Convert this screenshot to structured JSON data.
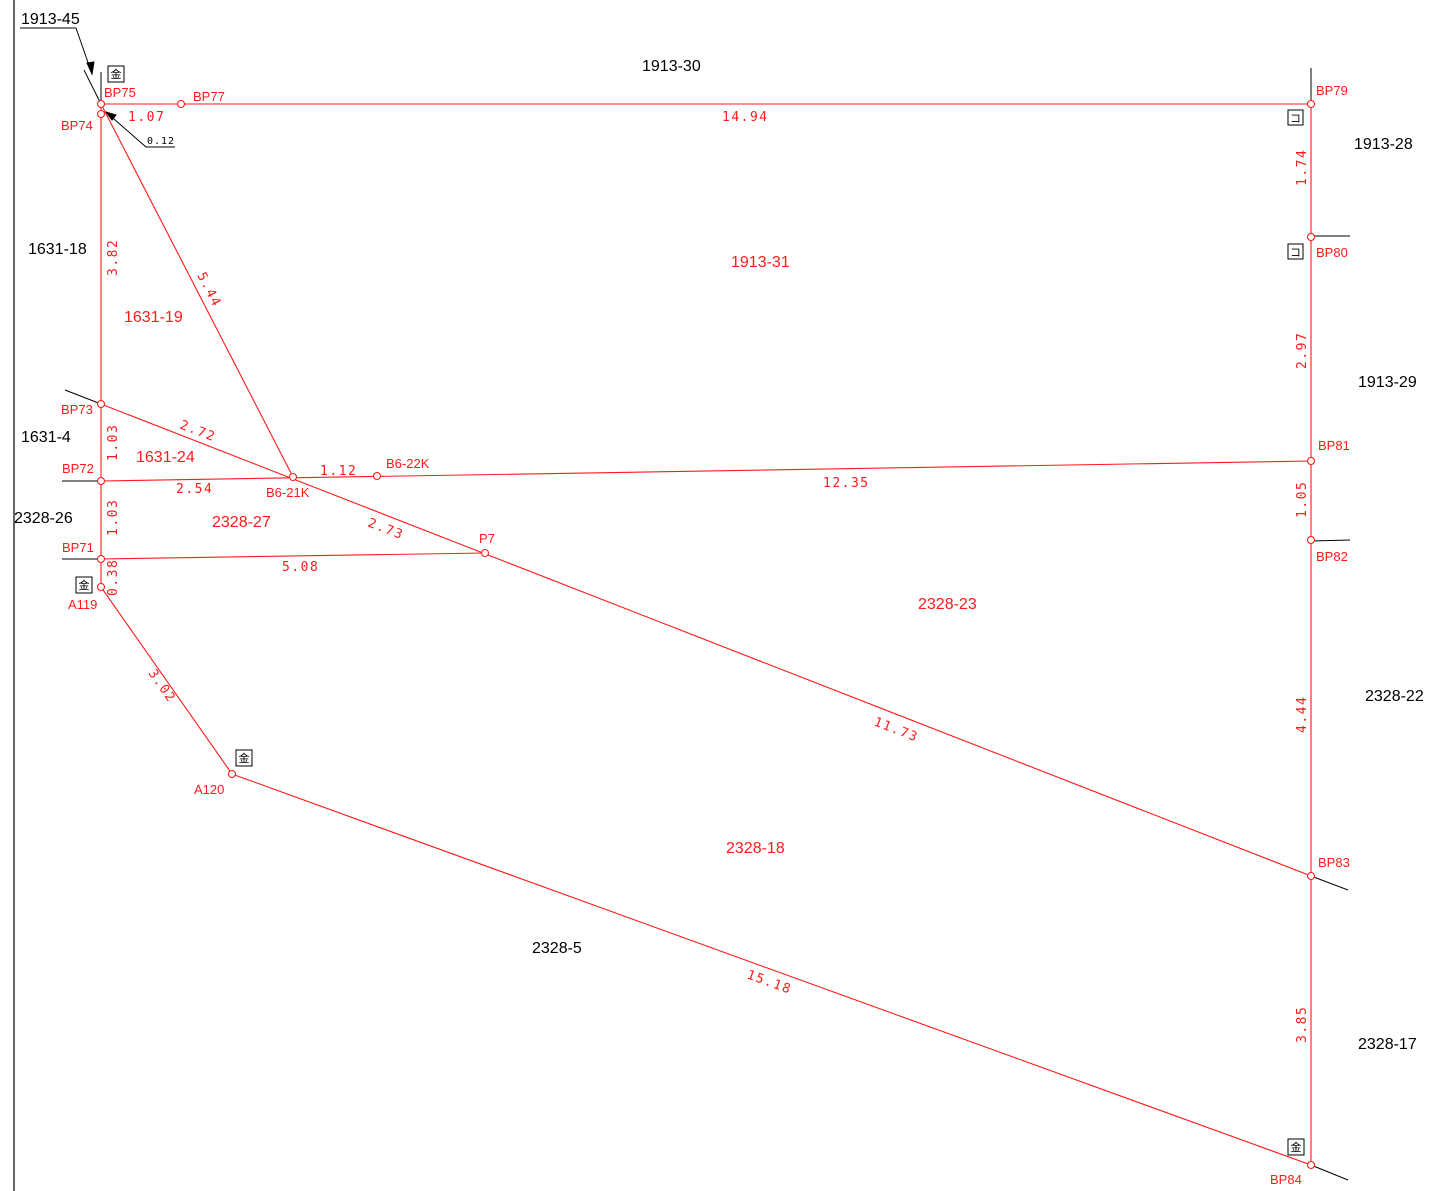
{
  "neighbor_parcels": {
    "p1913_45": "1913-45",
    "p1913_30": "1913-30",
    "p1913_28": "1913-28",
    "p1631_18": "1631-18",
    "p1913_29": "1913-29",
    "p1631_4": "1631-4",
    "p2328_26": "2328-26",
    "p2328_22": "2328-22",
    "p2328_5": "2328-5",
    "p2328_17": "2328-17"
  },
  "subject_parcels": {
    "p1913_31": "1913-31",
    "p1631_19": "1631-19",
    "p1631_24": "1631-24",
    "p2328_27": "2328-27",
    "p2328_23": "2328-23",
    "p2328_18": "2328-18"
  },
  "points": {
    "BP74": "BP74",
    "BP75": "BP75",
    "BP77": "BP77",
    "BP79": "BP79",
    "BP80": "BP80",
    "BP81": "BP81",
    "BP82": "BP82",
    "BP83": "BP83",
    "BP84": "BP84",
    "BP73": "BP73",
    "BP72": "BP72",
    "BP71": "BP71",
    "A119": "A119",
    "A120": "A120",
    "B6_21K": "B6-21K",
    "B6_22K": "B6-22K",
    "P7": "P7"
  },
  "distances": {
    "d1_07": "1.07",
    "d14_94": "14.94",
    "d0_12": "0.12",
    "d3_82": "3.82",
    "d5_44": "5.44",
    "d1_74": "1.74",
    "d2_97": "2.97",
    "d1_03a": "1.03",
    "d2_72": "2.72",
    "d1_12": "1.12",
    "d2_54": "2.54",
    "d12_35": "12.35",
    "d1_05": "1.05",
    "d1_03b": "1.03",
    "d2_73": "2.73",
    "d5_08": "5.08",
    "d0_38": "0.38",
    "d3_02": "3.02",
    "d11_73": "11.73",
    "d4_44": "4.44",
    "d15_18": "15.18",
    "d3_85": "3.85"
  },
  "markers": {
    "kin": "金",
    "ko": "コ"
  },
  "colors": {
    "boundary": "#ff1a1a",
    "neighbor_text": "#000000"
  }
}
